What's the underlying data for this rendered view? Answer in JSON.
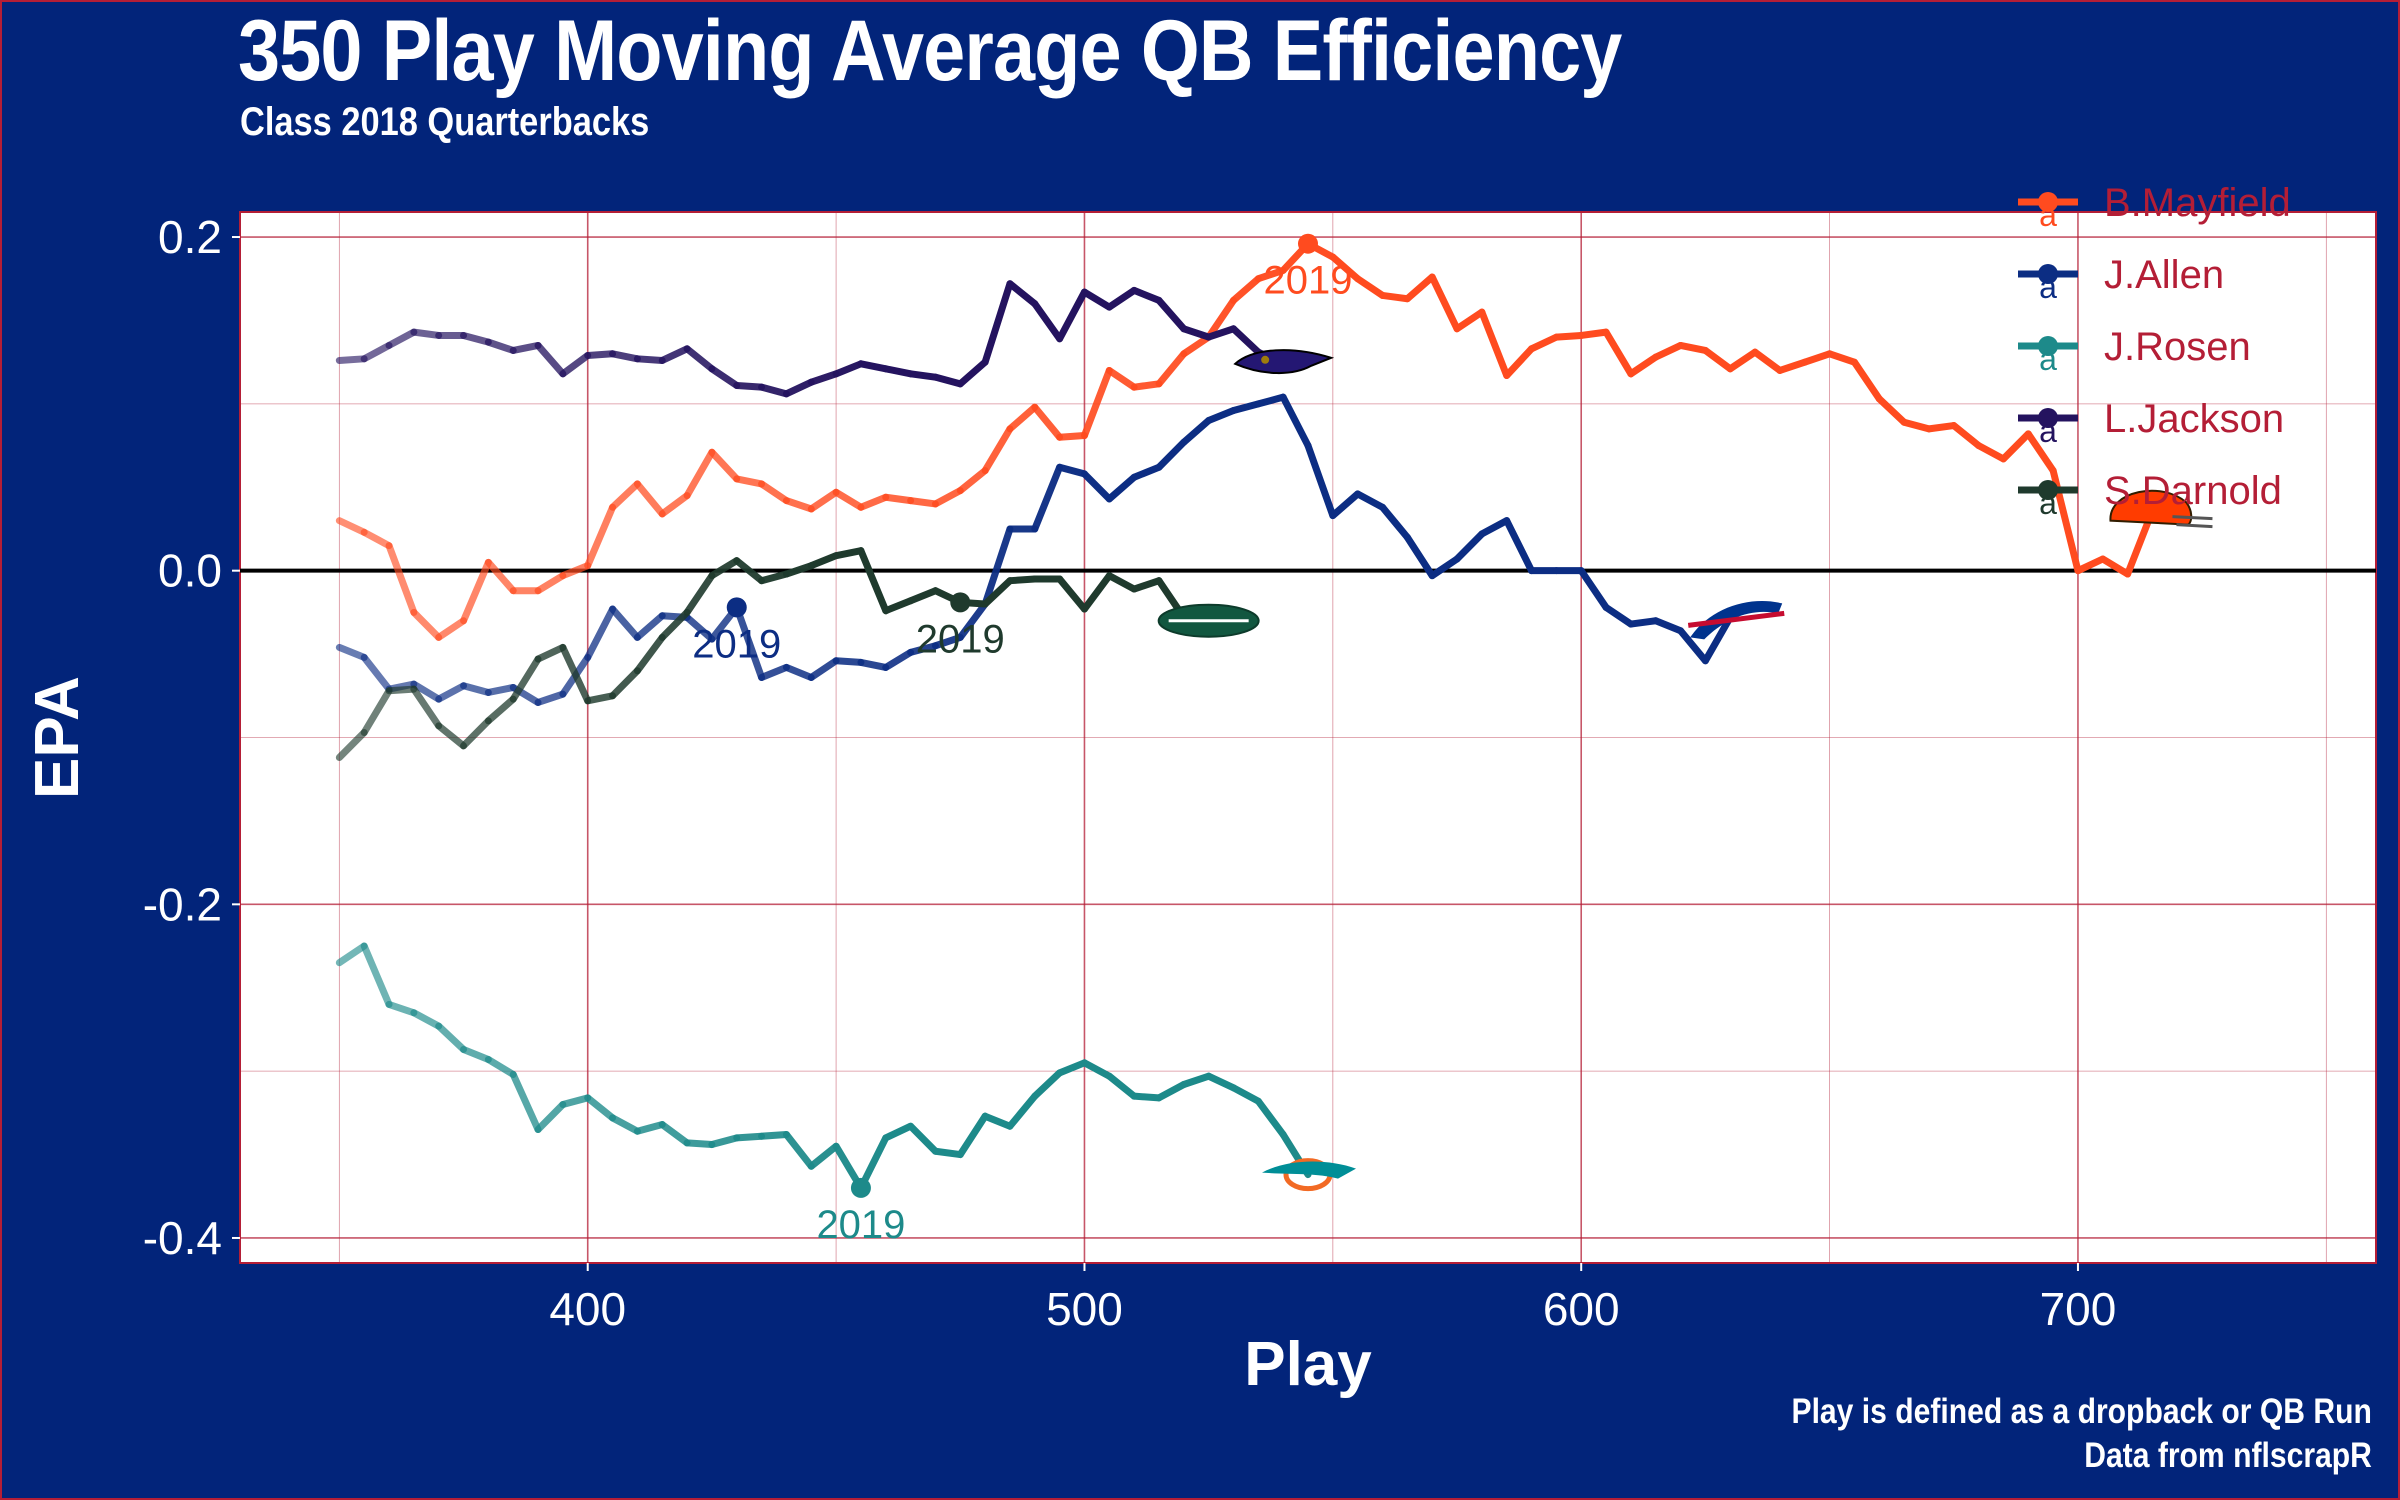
{
  "page": {
    "title": "350 Play Moving Average QB Efficiency",
    "subtitle": "Class 2018 Quarterbacks",
    "caption_line1": "Play is defined as a dropback or QB Run",
    "caption_line2": "Data from nflscrapR"
  },
  "colors": {
    "background": "#02247a",
    "panel": "#ffffff",
    "grid": "#b41e36",
    "legend_text": "#b41e36",
    "zero_line": "#000000"
  },
  "chart_data": {
    "type": "line",
    "title": "350 Play Moving Average QB Efficiency",
    "subtitle": "Class 2018 Quarterbacks",
    "xlabel": "Play",
    "ylabel": "EPA",
    "xlim": [
      330,
      760
    ],
    "ylim": [
      -0.415,
      0.215
    ],
    "xticks": [
      400,
      500,
      600,
      700
    ],
    "yticks": [
      0.2,
      0.0,
      -0.2,
      -0.4
    ],
    "xtick_labels": [
      "400",
      "500",
      "600",
      "700"
    ],
    "ytick_labels": [
      "0.2",
      "0.0",
      "-0.2",
      "-0.4"
    ],
    "grid": true,
    "zero_line": true,
    "legend_position": "top-right",
    "legend_marker": "a",
    "series": [
      {
        "name": "B.Mayfield",
        "color": "#ff4b1f",
        "logo_icon": "browns-helmet-icon",
        "highlight_label": "2019",
        "highlight": [
          545,
          0.196
        ],
        "x": [
          350,
          355,
          360,
          365,
          370,
          375,
          380,
          385,
          390,
          395,
          400,
          405,
          410,
          415,
          420,
          425,
          430,
          435,
          440,
          445,
          450,
          455,
          460,
          465,
          470,
          475,
          480,
          485,
          490,
          495,
          500,
          505,
          510,
          515,
          520,
          525,
          530,
          535,
          540,
          545,
          550,
          555,
          560,
          565,
          570,
          575,
          580,
          585,
          590,
          595,
          600,
          605,
          610,
          615,
          620,
          625,
          630,
          635,
          640,
          645,
          650,
          655,
          660,
          665,
          670,
          675,
          680,
          685,
          690,
          695,
          700,
          705,
          710,
          715
        ],
        "y": [
          0.03,
          0.023,
          0.015,
          -0.025,
          -0.04,
          -0.03,
          0.005,
          -0.012,
          -0.012,
          -0.003,
          0.003,
          0.038,
          0.052,
          0.034,
          0.045,
          0.071,
          0.055,
          0.052,
          0.042,
          0.037,
          0.047,
          0.038,
          0.044,
          0.042,
          0.04,
          0.048,
          0.06,
          0.085,
          0.098,
          0.08,
          0.081,
          0.12,
          0.11,
          0.112,
          0.13,
          0.14,
          0.162,
          0.175,
          0.18,
          0.196,
          0.188,
          0.175,
          0.165,
          0.163,
          0.176,
          0.145,
          0.155,
          0.117,
          0.133,
          0.14,
          0.141,
          0.143,
          0.118,
          0.128,
          0.135,
          0.132,
          0.121,
          0.131,
          0.12,
          0.125,
          0.13,
          0.125,
          0.103,
          0.089,
          0.085,
          0.087,
          0.075,
          0.067,
          0.082,
          0.06,
          0.0,
          0.007,
          -0.002,
          0.036
        ]
      },
      {
        "name": "J.Allen",
        "color": "#0c2d83",
        "logo_icon": "bills-logo-icon",
        "highlight_label": "2019",
        "highlight": [
          430,
          -0.022
        ],
        "x": [
          350,
          355,
          360,
          365,
          370,
          375,
          380,
          385,
          390,
          395,
          400,
          405,
          410,
          415,
          420,
          425,
          430,
          435,
          440,
          445,
          450,
          455,
          460,
          465,
          470,
          475,
          480,
          485,
          490,
          495,
          500,
          505,
          510,
          515,
          520,
          525,
          530,
          535,
          540,
          545,
          550,
          555,
          560,
          565,
          570,
          575,
          580,
          585,
          590,
          595,
          600,
          605,
          610,
          615,
          620,
          625,
          630
        ],
        "y": [
          -0.046,
          -0.052,
          -0.071,
          -0.068,
          -0.077,
          -0.069,
          -0.073,
          -0.07,
          -0.079,
          -0.074,
          -0.052,
          -0.023,
          -0.04,
          -0.027,
          -0.028,
          -0.041,
          -0.022,
          -0.064,
          -0.058,
          -0.064,
          -0.054,
          -0.055,
          -0.058,
          -0.049,
          -0.045,
          -0.04,
          -0.02,
          0.025,
          0.025,
          0.062,
          0.058,
          0.043,
          0.056,
          0.062,
          0.077,
          0.09,
          0.096,
          0.1,
          0.104,
          0.075,
          0.033,
          0.046,
          0.038,
          0.02,
          -0.003,
          0.007,
          0.022,
          0.03,
          0.0,
          0.0,
          0.0,
          -0.022,
          -0.032,
          -0.03,
          -0.036,
          -0.054,
          -0.028
        ]
      },
      {
        "name": "J.Rosen",
        "color": "#1d8a8a",
        "logo_icon": "dolphins-logo-icon",
        "highlight_label": "2019",
        "highlight": [
          455,
          -0.37
        ],
        "x": [
          350,
          355,
          360,
          365,
          370,
          375,
          380,
          385,
          390,
          395,
          400,
          405,
          410,
          415,
          420,
          425,
          430,
          435,
          440,
          445,
          450,
          455,
          460,
          465,
          470,
          475,
          480,
          485,
          490,
          495,
          500,
          505,
          510,
          515,
          520,
          525,
          530,
          535,
          540,
          545
        ],
        "y": [
          -0.235,
          -0.225,
          -0.26,
          -0.265,
          -0.273,
          -0.287,
          -0.293,
          -0.302,
          -0.335,
          -0.32,
          -0.316,
          -0.328,
          -0.336,
          -0.332,
          -0.343,
          -0.344,
          -0.34,
          -0.339,
          -0.338,
          -0.357,
          -0.345,
          -0.37,
          -0.34,
          -0.333,
          -0.348,
          -0.35,
          -0.327,
          -0.333,
          -0.315,
          -0.301,
          -0.295,
          -0.303,
          -0.315,
          -0.316,
          -0.308,
          -0.303,
          -0.31,
          -0.318,
          -0.338,
          -0.362
        ]
      },
      {
        "name": "L.Jackson",
        "color": "#24135f",
        "logo_icon": "ravens-logo-icon",
        "highlight_label": "",
        "highlight": null,
        "x": [
          350,
          355,
          360,
          365,
          370,
          375,
          380,
          385,
          390,
          395,
          400,
          405,
          410,
          415,
          420,
          425,
          430,
          435,
          440,
          445,
          450,
          455,
          460,
          465,
          470,
          475,
          480,
          485,
          490,
          495,
          500,
          505,
          510,
          515,
          520,
          525,
          530,
          535,
          540
        ],
        "y": [
          0.126,
          0.127,
          0.135,
          0.143,
          0.141,
          0.141,
          0.137,
          0.132,
          0.135,
          0.118,
          0.129,
          0.13,
          0.127,
          0.126,
          0.133,
          0.121,
          0.111,
          0.11,
          0.106,
          0.113,
          0.118,
          0.124,
          0.121,
          0.118,
          0.116,
          0.112,
          0.125,
          0.172,
          0.16,
          0.139,
          0.167,
          0.158,
          0.168,
          0.162,
          0.145,
          0.14,
          0.145,
          0.131,
          0.124
        ]
      },
      {
        "name": "S.Darnold",
        "color": "#1f3a2d",
        "logo_icon": "jets-logo-icon",
        "highlight_label": "2019",
        "highlight": [
          475,
          -0.019
        ],
        "x": [
          350,
          355,
          360,
          365,
          370,
          375,
          380,
          385,
          390,
          395,
          400,
          405,
          410,
          415,
          420,
          425,
          430,
          435,
          440,
          445,
          450,
          455,
          460,
          465,
          470,
          475,
          480,
          485,
          490,
          495,
          500,
          505,
          510,
          515,
          520,
          525
        ],
        "y": [
          -0.112,
          -0.097,
          -0.072,
          -0.071,
          -0.093,
          -0.105,
          -0.09,
          -0.077,
          -0.053,
          -0.046,
          -0.078,
          -0.075,
          -0.06,
          -0.04,
          -0.025,
          -0.003,
          0.006,
          -0.006,
          -0.002,
          0.003,
          0.009,
          0.012,
          -0.024,
          -0.018,
          -0.012,
          -0.019,
          -0.02,
          -0.006,
          -0.005,
          -0.005,
          -0.023,
          -0.003,
          -0.011,
          -0.006,
          -0.028,
          -0.03
        ]
      }
    ]
  }
}
